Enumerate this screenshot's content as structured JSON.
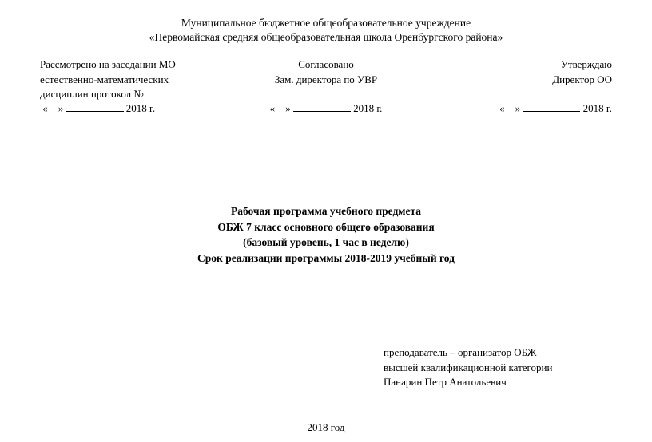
{
  "header": {
    "line1": "Муниципальное бюджетное общеобразовательное учреждение",
    "line2": "«Первомайская средняя общеобразовательная школа Оренбургского района»"
  },
  "approval": {
    "left": {
      "l1": "Рассмотрено на заседании МО",
      "l2": "естественно-математических",
      "l3_prefix": "дисциплин протокол № ",
      "date_year": " 2018 г."
    },
    "center": {
      "l1": "Согласовано",
      "l2": "Зам. директора по УВР",
      "date_year": " 2018 г."
    },
    "right": {
      "l1": "Утверждаю",
      "l2": "Директор ОО",
      "date_year": " 2018 г."
    },
    "quote_open": "«",
    "quote_close": "»"
  },
  "title": {
    "l1": "Рабочая программа учебного предмета",
    "l2": "ОБЖ 7 класс основного общего образования",
    "l3": "(базовый уровень, 1 час в неделю)",
    "l4": "Срок реализации программы 2018-2019 учебный год"
  },
  "teacher": {
    "l1": "преподаватель – организатор ОБЖ",
    "l2": "высшей квалификационной категории",
    "l3": "Панарин Петр Анатольевич"
  },
  "footer": {
    "year": "2018 год"
  }
}
